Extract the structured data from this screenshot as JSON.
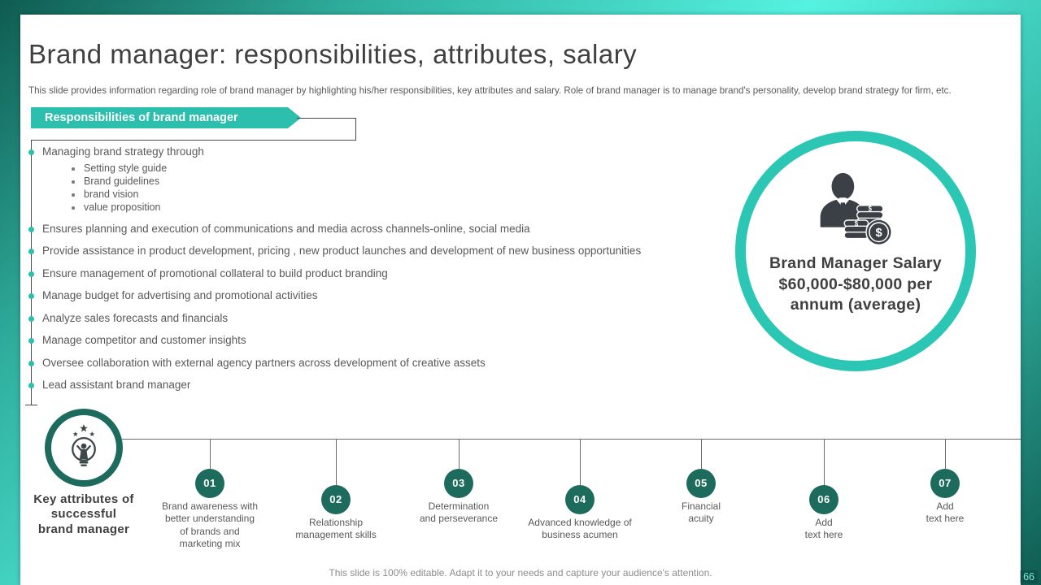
{
  "colors": {
    "accent_teal": "#2cbfae",
    "salary_ring_teal": "#2cc7b4",
    "dark_green": "#1d6b5c",
    "frame_dark_teal": "#0f5b51",
    "frame_bright_aqua": "#55f2e1",
    "title_gray": "#3f3f3f",
    "body_gray": "#595959"
  },
  "header": {
    "title": "Brand manager: responsibilities, attributes, salary",
    "subtitle": "This slide provides information regarding role of brand manager by highlighting his/her responsibilities, key attributes and salary. Role of brand manager is to manage brand's personality, develop brand strategy for firm, etc."
  },
  "responsibilities": {
    "banner_label": "Responsibilities of brand manager",
    "items": [
      {
        "text": "Managing brand strategy through",
        "subitems": [
          "Setting style guide",
          "Brand guidelines",
          "brand vision",
          "value proposition"
        ]
      },
      {
        "text": "Ensures planning and execution of communications and media across channels-online, social media",
        "subitems": []
      },
      {
        "text": "Provide assistance in product development, pricing , new product launches and development of new business opportunities",
        "subitems": []
      },
      {
        "text": "Ensure management of promotional collateral to build product branding",
        "subitems": []
      },
      {
        "text": "Manage budget for advertising and promotional activities",
        "subitems": []
      },
      {
        "text": "Analyze sales forecasts and financials",
        "subitems": []
      },
      {
        "text": "Manage competitor and customer insights",
        "subitems": []
      },
      {
        "text": "Oversee collaboration with external agency partners across development of creative assets",
        "subitems": []
      },
      {
        "text": "Lead assistant brand manager",
        "subitems": []
      }
    ]
  },
  "salary_badge": {
    "icon": "businessman-coins-icon",
    "lines": [
      "Brand Manager Salary",
      "$60,000-$80,000 per",
      "annum (average)"
    ]
  },
  "key_attributes": {
    "icon": "idea-lightbulb-icon",
    "heading_lines": [
      "Key attributes of",
      "successful",
      "brand manager"
    ],
    "items": [
      {
        "number": "01",
        "label_lines": [
          "Brand awareness with",
          "better understanding",
          "of brands and",
          "marketing mix"
        ]
      },
      {
        "number": "02",
        "label_lines": [
          "Relationship",
          "management skills"
        ]
      },
      {
        "number": "03",
        "label_lines": [
          "Determination",
          "and perseverance"
        ]
      },
      {
        "number": "04",
        "label_lines": [
          "Advanced knowledge of",
          "business acumen"
        ]
      },
      {
        "number": "05",
        "label_lines": [
          "Financial",
          "acuity"
        ]
      },
      {
        "number": "06",
        "label_lines": [
          "Add",
          "text here"
        ]
      },
      {
        "number": "07",
        "label_lines": [
          "Add",
          "text here"
        ]
      }
    ]
  },
  "footer": {
    "note": "This slide is 100% editable. Adapt it to your needs and capture your audience's attention.",
    "page_number": "66"
  }
}
